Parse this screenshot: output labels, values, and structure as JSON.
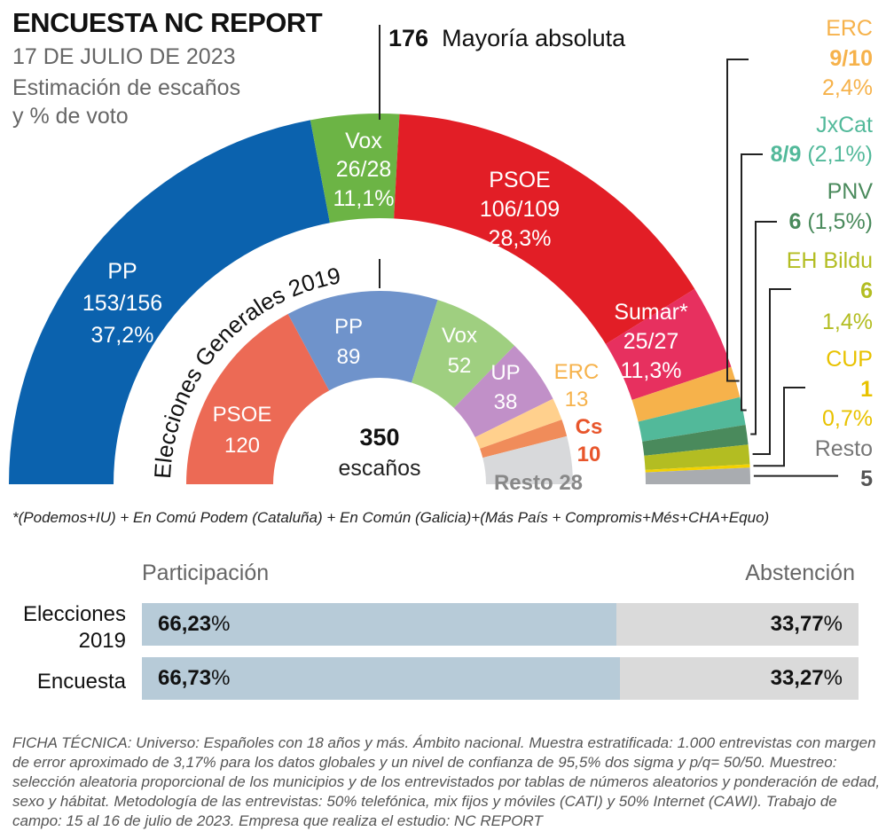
{
  "header": {
    "title": "ENCUESTA NC REPORT",
    "date": "17 DE JULIO DE 2023",
    "subtitle_line1": "Estimación de escaños",
    "subtitle_line2": "y % de voto",
    "majority_number": "176",
    "majority_label": "Mayoría absoluta"
  },
  "chart_data": [
    {
      "type": "pie",
      "variant": "hemicycle",
      "title": "Encuesta",
      "total_seats": 350,
      "segments": [
        {
          "party": "PP",
          "seats_range": "153/156",
          "seats": 154.5,
          "vote_pct": "37,2%",
          "color": "#0b62ae"
        },
        {
          "party": "Vox",
          "seats_range": "26/28",
          "seats": 27,
          "vote_pct": "11,1%",
          "color": "#6cb445"
        },
        {
          "party": "PSOE",
          "seats_range": "106/109",
          "seats": 107.5,
          "vote_pct": "28,3%",
          "color": "#e21e26"
        },
        {
          "party": "Sumar*",
          "seats_range": "25/27",
          "seats": 26,
          "vote_pct": "11,3%",
          "color": "#e7305f"
        },
        {
          "party": "ERC",
          "seats_range": "9/10",
          "seats": 9.5,
          "vote_pct": "2,4%",
          "color": "#f6b24b"
        },
        {
          "party": "JxCat",
          "seats_range": "8/9",
          "seats": 8.5,
          "vote_pct": "(2,1%)",
          "color": "#52b99a"
        },
        {
          "party": "PNV",
          "seats_range": "6",
          "seats": 6,
          "vote_pct": "(1,5%)",
          "color": "#4a8a5c"
        },
        {
          "party": "EH Bildu",
          "seats_range": "6",
          "seats": 6,
          "vote_pct": "1,4%",
          "color": "#b3bd22"
        },
        {
          "party": "CUP",
          "seats_range": "1",
          "seats": 1,
          "vote_pct": "0,7%",
          "color": "#f4d200"
        },
        {
          "party": "Resto",
          "seats_range": "5",
          "seats": 5,
          "vote_pct": "",
          "color": "#a9acb0"
        }
      ]
    },
    {
      "type": "pie",
      "variant": "hemicycle",
      "title": "Elecciones Generales 2019",
      "center_value": "350",
      "center_label": "escaños",
      "segments": [
        {
          "party": "PSOE",
          "seats": 120,
          "color": "#ec6a55"
        },
        {
          "party": "PP",
          "seats": 89,
          "color": "#6f93cb"
        },
        {
          "party": "Vox",
          "seats": 52,
          "color": "#9fcf80"
        },
        {
          "party": "UP",
          "seats": 38,
          "color": "#c190c8"
        },
        {
          "party": "ERC",
          "seats": 13,
          "color": "#ffd08d"
        },
        {
          "party": "Cs",
          "seats": 10,
          "color": "#f08c5a"
        },
        {
          "party": "Resto",
          "seats": 28,
          "color": "#d8d9db"
        }
      ]
    }
  ],
  "labels": {
    "outer": {
      "PP": [
        "PP",
        "153/156",
        "37,2%"
      ],
      "Vox": [
        "Vox",
        "26/28",
        "11,1%"
      ],
      "PSOE": [
        "PSOE",
        "106/109",
        "28,3%"
      ],
      "Sumar": [
        "Sumar*",
        "25/27",
        "11,3%"
      ]
    },
    "inner": {
      "PSOE": [
        "PSOE",
        "120"
      ],
      "PP": [
        "PP",
        "89"
      ],
      "Vox": [
        "Vox",
        "52"
      ],
      "UP": [
        "UP",
        "38"
      ],
      "ERC": [
        "ERC",
        "13"
      ],
      "Cs": [
        "Cs",
        "10"
      ],
      "Resto": "Resto 28"
    },
    "inner_title": "Elecciones Generales 2019",
    "center_value": "350",
    "center_label": "escaños",
    "right": {
      "erc_name": "ERC",
      "erc_seats": "9/10",
      "erc_pct": "2,4%",
      "jxcat_name": "JxCat",
      "jxcat_seats": "8/9",
      "jxcat_pct": "(2,1%)",
      "pnv_name": "PNV",
      "pnv_seats": "6",
      "pnv_pct": "(1,5%)",
      "bildu_name": "EH Bildu",
      "bildu_seats": "6",
      "bildu_pct": "1,4%",
      "cup_name": "CUP",
      "cup_seats": "1",
      "cup_pct": "0,7%",
      "resto_name": "Resto",
      "resto_seats": "5"
    }
  },
  "footnote": "*(Podemos+IU) + En Comú Podem (Cataluña) + En Común (Galicia)+(Más País + Compromis+Més+CHA+Equo)",
  "participation": {
    "header_left": "Participación",
    "header_right": "Abstención",
    "rows": [
      {
        "label_line1": "Elecciones",
        "label_line2": "2019",
        "participation": 66.23,
        "participation_text": "66,23",
        "abstention_text": "33,77",
        "unit": "%"
      },
      {
        "label_line1": "Encuesta",
        "label_line2": "",
        "participation": 66.73,
        "participation_text": "66,73",
        "abstention_text": "33,27",
        "unit": "%"
      }
    ]
  },
  "technical": "FICHA TÉCNICA: Universo: Españoles con 18 años y más. Ámbito nacional. Muestra estratificada: 1.000 entrevistas con margen de error aproximado de 3,17% para los datos globales y un nivel de confianza de 95,5% dos sigma y p/q= 50/50. Muestreo: selección aleatoria proporcional de los municipios y de los entrevistados por tablas de números aleatorios y ponderación de edad, sexo y hábitat. Metodología de las entrevistas: 50% telefónica, mix fijos y móviles (CATI) y 50% Internet (CAWI). Trabajo de campo: 15 al 16 de julio de 2023. Empresa que realiza el estudio: NC REPORT"
}
